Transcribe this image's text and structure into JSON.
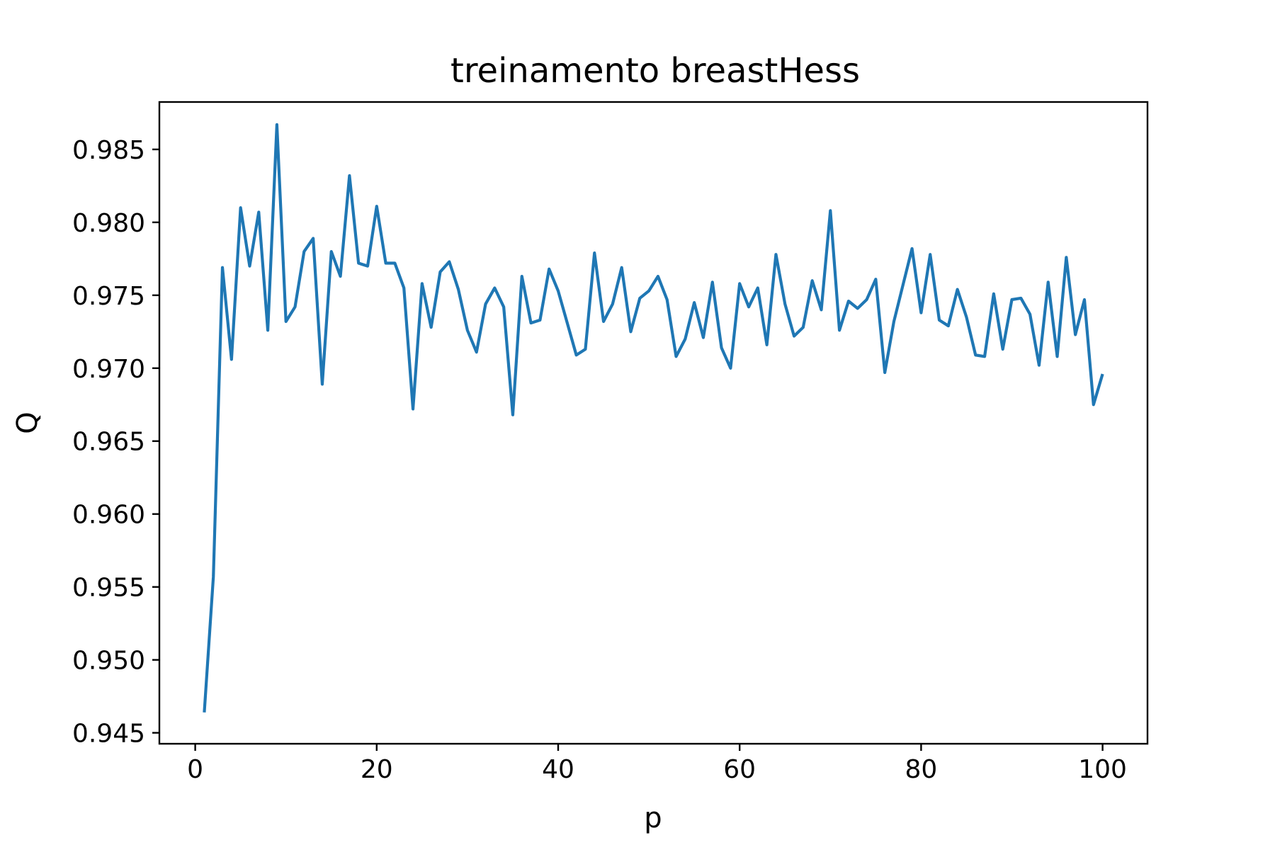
{
  "chart_data": {
    "type": "line",
    "title": "treinamento breastHess",
    "xlabel": "p",
    "ylabel": "Q",
    "xlim": [
      -3.95,
      104.95
    ],
    "ylim": [
      0.94425,
      0.98825
    ],
    "xticks": [
      0,
      20,
      40,
      60,
      80,
      100
    ],
    "xtick_labels": [
      "0",
      "20",
      "40",
      "60",
      "80",
      "100"
    ],
    "yticks": [
      0.945,
      0.95,
      0.955,
      0.96,
      0.965,
      0.97,
      0.975,
      0.98,
      0.985
    ],
    "ytick_labels": [
      "0.945",
      "0.950",
      "0.955",
      "0.960",
      "0.965",
      "0.970",
      "0.975",
      "0.980",
      "0.985"
    ],
    "grid": false,
    "series": [
      {
        "color": "#1f77b4",
        "x": [
          1,
          2,
          3,
          4,
          5,
          6,
          7,
          8,
          9,
          10,
          11,
          12,
          13,
          14,
          15,
          16,
          17,
          18,
          19,
          20,
          21,
          22,
          23,
          24,
          25,
          26,
          27,
          28,
          29,
          30,
          31,
          32,
          33,
          34,
          35,
          36,
          37,
          38,
          39,
          40,
          41,
          42,
          43,
          44,
          45,
          46,
          47,
          48,
          49,
          50,
          51,
          52,
          53,
          54,
          55,
          56,
          57,
          58,
          59,
          60,
          61,
          62,
          63,
          64,
          65,
          66,
          67,
          68,
          69,
          70,
          71,
          72,
          73,
          74,
          75,
          76,
          77,
          78,
          79,
          80,
          81,
          82,
          83,
          84,
          85,
          86,
          87,
          88,
          89,
          90,
          91,
          92,
          93,
          94,
          95,
          96,
          97,
          98,
          99,
          100
        ],
        "values": [
          0.9464,
          0.9557,
          0.9769,
          0.9706,
          0.981,
          0.977,
          0.9807,
          0.9726,
          0.9867,
          0.9732,
          0.9742,
          0.978,
          0.9789,
          0.9689,
          0.978,
          0.9763,
          0.9832,
          0.9772,
          0.977,
          0.9811,
          0.9772,
          0.9772,
          0.9755,
          0.9672,
          0.9758,
          0.9728,
          0.9766,
          0.9773,
          0.9754,
          0.9726,
          0.9711,
          0.9744,
          0.9755,
          0.9742,
          0.9668,
          0.9763,
          0.9731,
          0.9733,
          0.9768,
          0.9753,
          0.9731,
          0.9709,
          0.9713,
          0.9779,
          0.9732,
          0.9744,
          0.9769,
          0.9725,
          0.9748,
          0.9753,
          0.9763,
          0.9747,
          0.9708,
          0.972,
          0.9745,
          0.9721,
          0.9759,
          0.9714,
          0.97,
          0.9758,
          0.9742,
          0.9755,
          0.9716,
          0.9778,
          0.9744,
          0.9722,
          0.9728,
          0.976,
          0.974,
          0.9808,
          0.9726,
          0.9746,
          0.9741,
          0.9747,
          0.9761,
          0.9697,
          0.9732,
          0.9757,
          0.9782,
          0.9738,
          0.9778,
          0.9733,
          0.9729,
          0.9754,
          0.9735,
          0.9709,
          0.9708,
          0.9751,
          0.9713,
          0.9747,
          0.9748,
          0.9737,
          0.9702,
          0.9759,
          0.9708,
          0.9776,
          0.9723,
          0.9747,
          0.9675,
          0.9696
        ]
      }
    ]
  }
}
